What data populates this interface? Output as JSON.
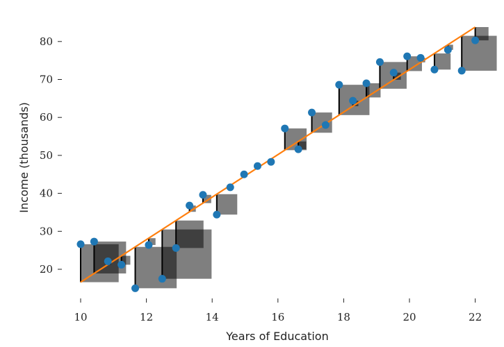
{
  "chart_data": {
    "type": "scatter",
    "title": "",
    "xlabel": "Years of Education",
    "ylabel": "Income (thousands)",
    "xlim": [
      10,
      22
    ],
    "ylim": [
      10,
      85
    ],
    "x_ticks": [
      10,
      12,
      14,
      16,
      18,
      20,
      22
    ],
    "y_ticks": [
      20,
      30,
      40,
      50,
      60,
      70,
      80
    ],
    "grid": false,
    "legend": "none",
    "colors": {
      "points": "#1f77b4",
      "fit_line": "#ff7f0e",
      "residual_lines": "#000000",
      "squares": "#000000"
    },
    "fit_line": {
      "intercept": 16.6,
      "slope": 5.6
    },
    "points": [
      {
        "x": 10.0,
        "y": 26.6
      },
      {
        "x": 10.41,
        "y": 27.3
      },
      {
        "x": 10.83,
        "y": 22.1
      },
      {
        "x": 11.24,
        "y": 21.2
      },
      {
        "x": 11.66,
        "y": 15.0
      },
      {
        "x": 12.07,
        "y": 26.4
      },
      {
        "x": 12.48,
        "y": 17.5
      },
      {
        "x": 12.9,
        "y": 25.6
      },
      {
        "x": 13.31,
        "y": 36.8
      },
      {
        "x": 13.72,
        "y": 39.6
      },
      {
        "x": 14.14,
        "y": 34.4
      },
      {
        "x": 14.55,
        "y": 41.6
      },
      {
        "x": 14.97,
        "y": 45.0
      },
      {
        "x": 15.38,
        "y": 47.2
      },
      {
        "x": 15.79,
        "y": 48.3
      },
      {
        "x": 16.21,
        "y": 57.1
      },
      {
        "x": 16.62,
        "y": 51.6
      },
      {
        "x": 17.03,
        "y": 61.3
      },
      {
        "x": 17.45,
        "y": 58.0
      },
      {
        "x": 17.86,
        "y": 68.6
      },
      {
        "x": 18.28,
        "y": 64.4
      },
      {
        "x": 18.69,
        "y": 69.0
      },
      {
        "x": 19.1,
        "y": 74.6
      },
      {
        "x": 19.52,
        "y": 71.8
      },
      {
        "x": 19.93,
        "y": 76.1
      },
      {
        "x": 20.34,
        "y": 75.7
      },
      {
        "x": 20.76,
        "y": 72.6
      },
      {
        "x": 21.17,
        "y": 77.8
      },
      {
        "x": 21.59,
        "y": 72.3
      },
      {
        "x": 22.0,
        "y": 80.3
      }
    ]
  }
}
